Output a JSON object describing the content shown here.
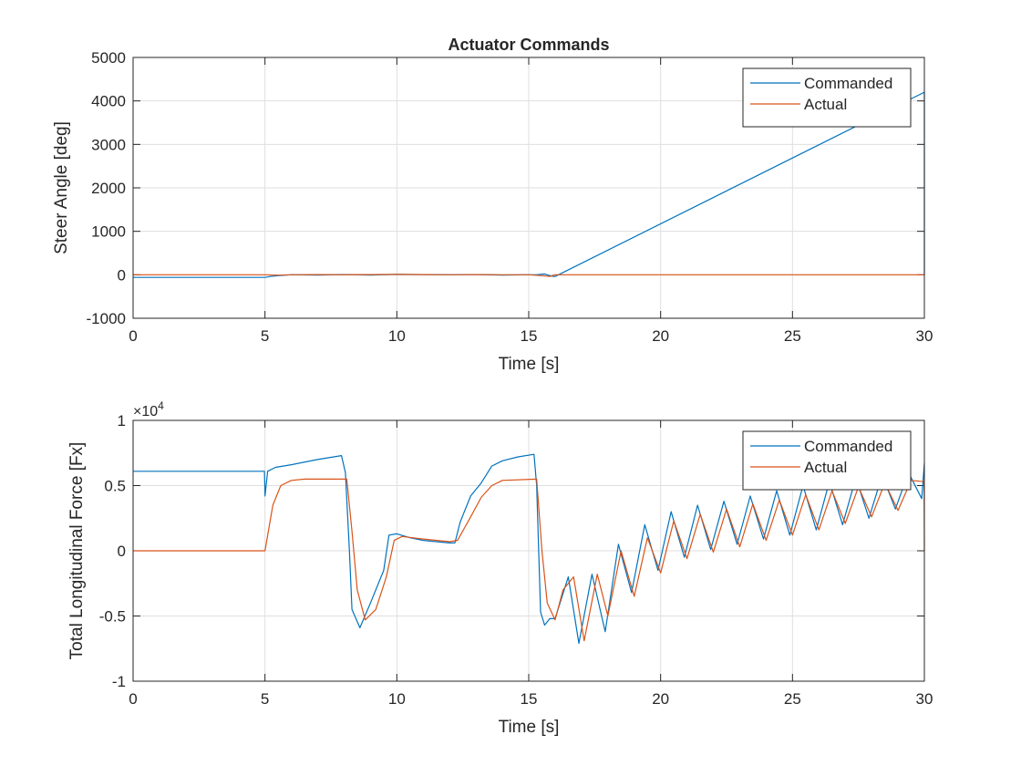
{
  "figure": {
    "title": "Actuator Commands"
  },
  "chart_data": [
    {
      "type": "line",
      "title": "Actuator Commands",
      "xlabel": "Time [s]",
      "ylabel": "Steer Angle [deg]",
      "xlim": [
        0,
        30
      ],
      "ylim": [
        -1000,
        5000
      ],
      "xticks": [
        "0",
        "5",
        "10",
        "15",
        "20",
        "25",
        "30"
      ],
      "yticks": [
        "-1000",
        "0",
        "1000",
        "2000",
        "3000",
        "4000",
        "5000"
      ],
      "grid": true,
      "legend_position": "top-right",
      "series": [
        {
          "name": "Commanded",
          "color": "#0072BD",
          "x": [
            0,
            5.0,
            5.2,
            5.5,
            6,
            7,
            8,
            9,
            10,
            11,
            12,
            13,
            14,
            15,
            15.3,
            15.6,
            15.8,
            15.95,
            16,
            30,
            30
          ],
          "y": [
            -60,
            -60,
            -40,
            -20,
            0,
            -5,
            5,
            -5,
            10,
            5,
            0,
            5,
            -5,
            0,
            0,
            20,
            -20,
            -40,
            -40,
            4200,
            0
          ]
        },
        {
          "name": "Actual",
          "color": "#D95319",
          "x": [
            0,
            5.0,
            5.5,
            6,
            7,
            8,
            9,
            10,
            11,
            12,
            13,
            14,
            15,
            15.5,
            15.8,
            16,
            20,
            25,
            30
          ],
          "y": [
            0,
            0,
            -10,
            0,
            5,
            0,
            5,
            10,
            5,
            0,
            5,
            0,
            0,
            -20,
            -40,
            0,
            0,
            0,
            0
          ]
        }
      ]
    },
    {
      "type": "line",
      "title": "",
      "xlabel": "Time [s]",
      "ylabel": "Total Longitudinal Force [Fx]",
      "exponent_label": "×10",
      "exponent_power": "4",
      "xlim": [
        0,
        30
      ],
      "ylim": [
        -10000,
        10000
      ],
      "xticks": [
        "0",
        "5",
        "10",
        "15",
        "20",
        "25",
        "30"
      ],
      "yticks": [
        "-1",
        "-0.5",
        "0",
        "0.5",
        "1"
      ],
      "grid": true,
      "legend_position": "top-right",
      "series": [
        {
          "name": "Commanded",
          "color": "#0072BD",
          "x": [
            0,
            4.98,
            5.0,
            5.1,
            5.4,
            6.0,
            7.0,
            7.9,
            8.05,
            8.2,
            8.3,
            8.6,
            9.0,
            9.5,
            9.7,
            10.0,
            10.5,
            11.0,
            11.5,
            12.0,
            12.2,
            12.4,
            12.8,
            13.2,
            13.6,
            14.0,
            14.6,
            15.2,
            15.3,
            15.45,
            15.6,
            15.8,
            16.0,
            16.5,
            16.9,
            17.4,
            17.9,
            18.4,
            18.9,
            19.4,
            19.9,
            20.4,
            20.9,
            21.4,
            21.9,
            22.4,
            22.9,
            23.4,
            23.9,
            24.4,
            24.9,
            25.4,
            25.9,
            26.4,
            26.9,
            27.4,
            27.9,
            28.4,
            28.9,
            29.4,
            29.9,
            30.0
          ],
          "y": [
            6100,
            6100,
            4200,
            6100,
            6400,
            6600,
            7000,
            7300,
            6000,
            0,
            -4500,
            -5900,
            -4000,
            -1500,
            1200,
            1300,
            1000,
            800,
            700,
            600,
            600,
            2200,
            4200,
            5200,
            6500,
            6900,
            7200,
            7400,
            5000,
            -4700,
            -5700,
            -5200,
            -5200,
            -2000,
            -7100,
            -1800,
            -6200,
            500,
            -3200,
            2000,
            -1500,
            3000,
            -500,
            3500,
            100,
            3800,
            500,
            4200,
            900,
            4600,
            1200,
            5000,
            1600,
            5300,
            2000,
            5600,
            2500,
            5800,
            3200,
            6000,
            4000,
            6700
          ]
        },
        {
          "name": "Actual",
          "color": "#D95319",
          "x": [
            0,
            5.0,
            5.3,
            5.6,
            6.0,
            6.5,
            8.1,
            8.3,
            8.5,
            8.8,
            9.2,
            9.6,
            9.9,
            10.2,
            11.0,
            12.0,
            12.3,
            12.8,
            13.2,
            13.6,
            14.0,
            15.3,
            15.5,
            15.7,
            16.0,
            16.3,
            16.7,
            17.1,
            17.6,
            18.0,
            18.5,
            19.0,
            19.5,
            20.0,
            20.5,
            21.0,
            21.5,
            22.0,
            22.5,
            23.0,
            23.5,
            24.0,
            24.5,
            25.0,
            25.5,
            26.0,
            26.5,
            27.0,
            27.5,
            28.0,
            28.5,
            29.0,
            29.5,
            29.99,
            30.0
          ],
          "y": [
            0,
            0,
            3500,
            5000,
            5400,
            5500,
            5500,
            1500,
            -3000,
            -5300,
            -4500,
            -2000,
            800,
            1100,
            900,
            700,
            800,
            2600,
            4100,
            5000,
            5400,
            5500,
            0,
            -4000,
            -5300,
            -3000,
            -2000,
            -6900,
            -1800,
            -5000,
            0,
            -3500,
            1000,
            -1700,
            2300,
            -600,
            2800,
            -100,
            3200,
            300,
            3600,
            800,
            3900,
            1200,
            4300,
            1600,
            4600,
            2100,
            4900,
            2600,
            5200,
            3100,
            5400,
            5300,
            0
          ]
        }
      ]
    }
  ]
}
